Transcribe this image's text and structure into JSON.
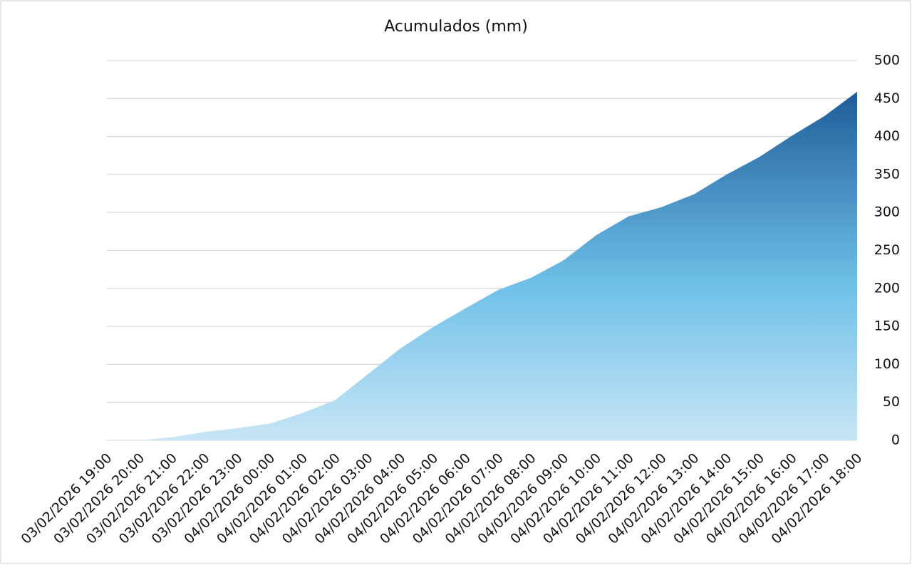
{
  "chart_data": {
    "type": "area",
    "title": "Acumulados (mm)",
    "categories": [
      "03/02/2026 19:00",
      "03/02/2026 20:00",
      "03/02/2026 21:00",
      "03/02/2026 22:00",
      "03/02/2026 23:00",
      "04/02/2026 00:00",
      "04/02/2026 01:00",
      "04/02/2026 02:00",
      "04/02/2026 03:00",
      "04/02/2026 04:00",
      "04/02/2026 05:00",
      "04/02/2026 06:00",
      "04/02/2026 07:00",
      "04/02/2026 08:00",
      "04/02/2026 09:00",
      "04/02/2026 10:00",
      "04/02/2026 11:00",
      "04/02/2026 12:00",
      "04/02/2026 13:00",
      "04/02/2026 14:00",
      "04/02/2026 15:00",
      "04/02/2026 16:00",
      "04/02/2026 17:00",
      "04/02/2026 18:00"
    ],
    "values": [
      0,
      0,
      4,
      11,
      16,
      22,
      36,
      53,
      87,
      121,
      149,
      174,
      198,
      214,
      237,
      270,
      295,
      307,
      324,
      350,
      373,
      401,
      427,
      459
    ],
    "ylim": [
      0,
      500
    ],
    "yticks": [
      0,
      50,
      100,
      150,
      200,
      250,
      300,
      350,
      400,
      450,
      500
    ],
    "grid": true,
    "y_axis_side": "right",
    "colors": [
      "#1f5c99",
      "#6ec0e8",
      "#c8e5f6"
    ]
  }
}
